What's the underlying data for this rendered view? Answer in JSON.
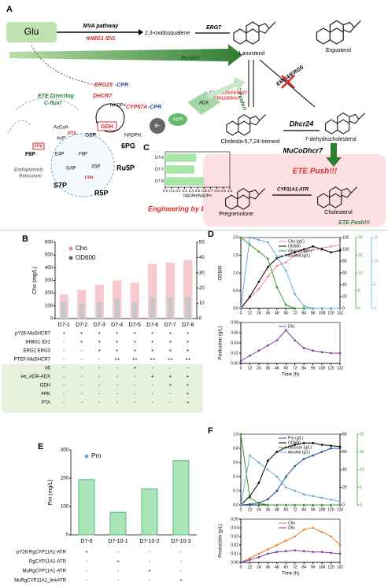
{
  "diagram": {
    "panel": "A",
    "glu": "Glu",
    "mva": "MVA pathway",
    "thmg1": "tHMG1 IDI1",
    "oxido": "2,3-oxidosqualene",
    "erg7": "ERG7",
    "lanosterol": "Lanosterol",
    "ergosterol": "Ergosterol",
    "push": "Push!!!",
    "ete_push_side": "ETE Push!!!",
    "erg_list": "ERG11/25/24/26/27",
    "erg23": "ERG2/ERG3",
    "erg45": "ERG4/ERG5",
    "ete_directing": "ETE Directing",
    "c_flux": "C-flux!",
    "erg25": "ERG25",
    "cpr1": "-CPR",
    "dhcr7": "DHCR7",
    "cyp87a": "CYP87A",
    "cpr2": "-CPR",
    "nadp": "NADP+",
    "nadph": "NADPH",
    "gdh": "GDH",
    "g6p": "G6P",
    "electron": "e-",
    "adr": "ADR",
    "adx": "ADX",
    "trienol": "Cholesta-5,7,24-trieneol",
    "dhcr24": "Dhcr24",
    "dhc": "7-dehydrocholesterol",
    "mucodhcr7": "MuCoDhcr7",
    "ete_push_box": "ETE Push!!!",
    "cyp11a1": "CYP11A1-ATR",
    "pregnenolone": "Pregnenolone",
    "cholesterol": "Cholesterol",
    "ete_push_low": "ETE Push!!!",
    "c_label": "C",
    "engineering": "Engineering by ETE",
    "er1": "Endoplasmic",
    "er2": "Reticulum",
    "accoa": "AcCoA",
    "acp": "AcP",
    "pta": "PTA",
    "fpk1": "FPK",
    "fpk2": "FPK",
    "f6p_big": "F6P",
    "f6p_small": "F6P",
    "e4p": "E4P",
    "gap": "GAP",
    "x5p": "X5P",
    "s7p": "S7P",
    "r5p": "R5P",
    "ru5p": "Ru5P",
    "pg6": "6PG"
  },
  "chart_data": [
    {
      "type": "hbar",
      "categories": [
        "D7-6",
        "D7-7",
        "D7-8"
      ],
      "values": [
        0.48,
        0.45,
        0.6
      ],
      "color": "#a8e6a8",
      "x_label": "NADPH/NADP+",
      "xlim": [
        0,
        1
      ],
      "xticks": [
        {
          "value": 0,
          "label": "0.0"
        },
        {
          "value": 0.1,
          "label": "0.1"
        },
        {
          "value": 0.2,
          "label": "0.2"
        },
        {
          "value": 0.3,
          "label": "0.3"
        },
        {
          "value": 0.4,
          "label": "0.4"
        },
        {
          "value": 0.5,
          "label": "0.5"
        },
        {
          "value": 0.6,
          "label": "0.6"
        },
        {
          "value": 0.7,
          "label": "0.7"
        },
        {
          "value": 0.8,
          "label": "0.8"
        },
        {
          "value": 0.9,
          "label": "0.9"
        },
        {
          "value": 1,
          "label": "1.0"
        }
      ]
    },
    {
      "type": "bar",
      "panel": "B",
      "y_label": "Cho (mg/L)",
      "categories": [
        "D7-1",
        "D7-2",
        "D7-3",
        "D7-4",
        "D7-5",
        "D7-6",
        "D7-7",
        "D7-8"
      ],
      "series": [
        {
          "name": "Cho",
          "color": "#f8c8cf",
          "values": [
            190,
            225,
            265,
            300,
            280,
            430,
            440,
            460
          ]
        },
        {
          "name": "OD600",
          "color": "#c8c8c8",
          "axis": "y2",
          "values": [
            11,
            10,
            11,
            13,
            11,
            14,
            14,
            14
          ]
        }
      ],
      "ylim": [
        0,
        600
      ],
      "yticks": [
        0,
        100,
        200,
        300,
        400,
        500,
        600
      ],
      "y2lim": [
        0,
        50
      ],
      "y2ticks": [
        0,
        10,
        20,
        30,
        40,
        50
      ],
      "table": {
        "rows": [
          {
            "label": "pY26-MuDHCR7",
            "cells": [
              "+",
              "+",
              "+",
              "+",
              "+",
              "+",
              "+",
              "+"
            ]
          },
          {
            "label": "tHMG1 IDI1",
            "cells": [
              "-",
              "+",
              "+",
              "+",
              "+",
              "+",
              "+",
              "+"
            ]
          },
          {
            "label": "ERG2 ERG3",
            "cells": [
              "-",
              "-",
              "+",
              "+",
              "+",
              "+",
              "+",
              "+"
            ]
          },
          {
            "label": "PTEF-MuDHCR7",
            "cells": [
              "-",
              "-",
              "-",
              "++",
              "++",
              "++",
              "++",
              "++"
            ]
          },
          {
            "label": "b5",
            "cells": [
              "-",
              "-",
              "-",
              "-",
              "+",
              "-",
              "-",
              "-"
            ]
          },
          {
            "label": "Hs_ADR-ADX",
            "cells": [
              "-",
              "-",
              "-",
              "-",
              "-",
              "+",
              "+",
              "+"
            ]
          },
          {
            "label": "GDH",
            "cells": [
              "-",
              "-",
              "-",
              "-",
              "-",
              "-",
              "+",
              "+"
            ]
          },
          {
            "label": "FPK",
            "cells": [
              "-",
              "-",
              "-",
              "-",
              "-",
              "-",
              "-",
              "+"
            ]
          },
          {
            "label": "PTA",
            "cells": [
              "-",
              "-",
              "-",
              "-",
              "-",
              "-",
              "-",
              "+"
            ]
          }
        ]
      }
    },
    {
      "type": "line",
      "panel": "D",
      "y_label": "OD600",
      "x": [
        0,
        12,
        24,
        36,
        48,
        60,
        72,
        84,
        96,
        108,
        120,
        132
      ],
      "series": [
        {
          "name": "Cho (g/L)",
          "color": "#f08aa8",
          "values": [
            0,
            0.3,
            0.55,
            0.9,
            1.2,
            1.3,
            1.5,
            1.6,
            1.65,
            1.7,
            1.75,
            1.8
          ]
        },
        {
          "name": "OD600",
          "color": "#000000",
          "axis": "y2",
          "values": [
            0,
            20,
            45,
            70,
            85,
            90,
            95,
            100,
            105,
            100,
            95,
            98
          ]
        },
        {
          "name": "Glucose (g/L)",
          "color": "#3c9a3c",
          "axis": "y3",
          "values": [
            20,
            18,
            16,
            14,
            6,
            1,
            0,
            0,
            0,
            0,
            0,
            0
          ]
        },
        {
          "name": "Alcohol (g/L)",
          "color": "#6fa8dc",
          "axis": "y4",
          "values": [
            0,
            15,
            14.5,
            14,
            11,
            8,
            3,
            0.5,
            0,
            0,
            0,
            0
          ]
        }
      ],
      "xlim": [
        0,
        132
      ],
      "xticks": [
        0,
        12,
        24,
        36,
        48,
        60,
        72,
        84,
        96,
        108,
        120,
        132
      ],
      "ylim": [
        0,
        2
      ],
      "yticks": [
        {
          "value": 0,
          "label": "0.0"
        },
        {
          "value": 0.5,
          "label": "0.5"
        },
        {
          "value": 1,
          "label": "1.0"
        },
        {
          "value": 1.5,
          "label": "1.5"
        },
        {
          "value": 2,
          "label": "2.0"
        }
      ],
      "y2lim": [
        0,
        120
      ],
      "y2ticks": [
        0,
        20,
        40,
        60,
        80,
        100,
        120
      ],
      "y3lim": [
        0,
        20
      ],
      "y3ticks": [
        0,
        5,
        10,
        15,
        20
      ],
      "y4lim": [
        0,
        15
      ],
      "y4ticks": [
        0,
        5,
        10,
        15
      ]
    },
    {
      "type": "line",
      "y_label": "Production (g/L)",
      "x_label": "Time (h)",
      "x": [
        0,
        12,
        24,
        36,
        48,
        60,
        72,
        84,
        96,
        108,
        120,
        132
      ],
      "series": [
        {
          "name": "Dhc",
          "color": "#7b3fa0",
          "values": [
            0.005,
            0.015,
            0.025,
            0.035,
            0.045,
            0.065,
            0.045,
            0.03,
            0.025,
            0.022,
            0.02,
            0.02
          ]
        }
      ],
      "xlim": [
        0,
        132
      ],
      "xticks": [
        0,
        12,
        24,
        36,
        48,
        60,
        72,
        84,
        96,
        108,
        120,
        132
      ],
      "ylim": [
        0,
        0.08
      ],
      "yticks": [
        {
          "value": 0,
          "label": "0.00"
        },
        {
          "value": 0.02,
          "label": "0.02"
        },
        {
          "value": 0.04,
          "label": "0.04"
        },
        {
          "value": 0.06,
          "label": "0.06"
        },
        {
          "value": 0.08,
          "label": "0.08"
        }
      ]
    },
    {
      "type": "bar",
      "panel": "E",
      "y_label": "Prn (mg/L)",
      "categories": [
        "D7-9",
        "D7-10-1",
        "D7-10-2",
        "D7-10-3"
      ],
      "series": [
        {
          "name": "Prn",
          "color": "#a8e6b8",
          "values": [
            195,
            80,
            162,
            262
          ]
        }
      ],
      "ylim": [
        0,
        300
      ],
      "yticks": [
        0,
        100,
        200,
        300
      ],
      "table": {
        "rows": [
          {
            "label": "pY26-RgCYP11A1-ATR",
            "cells": [
              "+",
              "-",
              "-",
              "-"
            ]
          },
          {
            "label": "RgCYP11A1-ATR",
            "cells": [
              "-",
              "+",
              "-",
              "-"
            ]
          },
          {
            "label": "MuRgCYP11A1-ATR",
            "cells": [
              "-",
              "-",
              "+",
              "-"
            ]
          },
          {
            "label": "MuRgCYP11A1_linkATR",
            "cells": [
              "-",
              "-",
              "-",
              "+"
            ]
          }
        ]
      }
    },
    {
      "type": "line",
      "panel": "F",
      "x": [
        0,
        12,
        24,
        36,
        48,
        60,
        72,
        84,
        96,
        108,
        120,
        132
      ],
      "series": [
        {
          "name": "Prn (g/L)",
          "color": "#1f4e9a",
          "values": [
            0,
            0.01,
            0.03,
            0.08,
            0.2,
            0.4,
            0.55,
            0.65,
            0.7,
            0.75,
            0.8,
            0.8
          ]
        },
        {
          "name": "OD600",
          "color": "#000000",
          "axis": "y2",
          "values": [
            0,
            10,
            25,
            50,
            60,
            65,
            68,
            70,
            70,
            68,
            67,
            66
          ]
        },
        {
          "name": "Glucose (g/L)",
          "color": "#3c9a3c",
          "axis": "y3",
          "values": [
            20,
            2,
            0.5,
            0,
            0,
            0,
            0,
            0,
            0,
            0,
            0,
            0
          ]
        },
        {
          "name": "Alcohol (g/L)",
          "color": "#6fa8dc",
          "axis": "y3",
          "values": [
            0,
            14,
            12,
            10,
            8,
            5,
            4,
            3,
            2.5,
            2,
            1.5,
            1
          ]
        }
      ],
      "xlim": [
        0,
        132
      ],
      "xticks": [
        0,
        12,
        24,
        36,
        48,
        60,
        72,
        84,
        96,
        108,
        120,
        132
      ],
      "ylim": [
        0,
        1
      ],
      "yticks": [
        {
          "value": 0,
          "label": "0.0"
        },
        {
          "value": 0.2,
          "label": "0.2"
        },
        {
          "value": 0.4,
          "label": "0.4"
        },
        {
          "value": 0.6,
          "label": "0.6"
        },
        {
          "value": 0.8,
          "label": "0.8"
        },
        {
          "value": 1,
          "label": "1.0"
        }
      ],
      "y2lim": [
        0,
        80
      ],
      "y2ticks": [
        0,
        20,
        40,
        60,
        80
      ],
      "y3lim": [
        0,
        20
      ],
      "y3ticks": [
        0,
        5,
        10,
        15,
        20
      ]
    },
    {
      "type": "line",
      "y_label": "Production (g/L)",
      "x_label": "Time (h)",
      "x": [
        0,
        12,
        24,
        36,
        48,
        60,
        72,
        84,
        96,
        108,
        120,
        132
      ],
      "series": [
        {
          "name": "Cho",
          "color": "#e8862a",
          "values": [
            0,
            0.005,
            0.01,
            0.015,
            0.02,
            0.025,
            0.03,
            0.038,
            0.04,
            0.035,
            0.03,
            0.02
          ]
        },
        {
          "name": "Dhc",
          "color": "#7b3fa0",
          "values": [
            0,
            0.003,
            0.006,
            0.01,
            0.012,
            0.013,
            0.014,
            0.013,
            0.012,
            0.012,
            0.011,
            0.01
          ]
        }
      ],
      "xlim": [
        0,
        132
      ],
      "xticks": [
        0,
        12,
        24,
        36,
        48,
        60,
        72,
        84,
        96,
        108,
        120,
        132
      ],
      "ylim": [
        0,
        0.05
      ],
      "yticks": [
        {
          "value": 0,
          "label": "0.00"
        },
        {
          "value": 0.01,
          "label": "0.01"
        },
        {
          "value": 0.02,
          "label": "0.02"
        },
        {
          "value": 0.03,
          "label": "0.03"
        },
        {
          "value": 0.04,
          "label": "0.04"
        },
        {
          "value": 0.05,
          "label": "0.05"
        }
      ]
    }
  ]
}
